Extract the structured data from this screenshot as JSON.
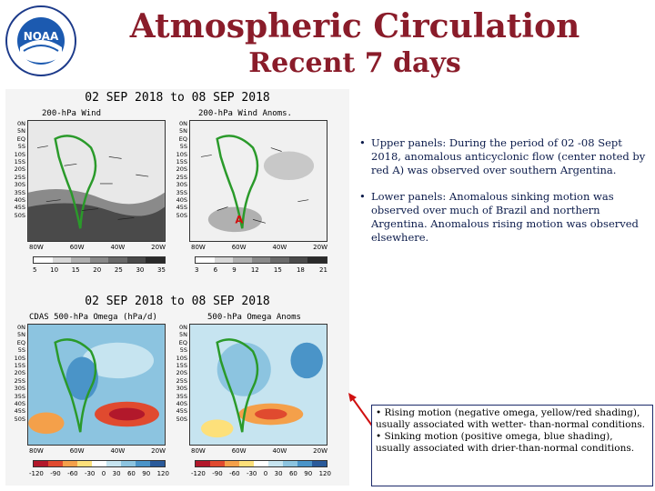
{
  "logo": {
    "text": "NOAA"
  },
  "title": {
    "line1": "Atmospheric Circulation",
    "line2": "Recent 7 days"
  },
  "maps": {
    "top": {
      "period": "02 SEP 2018 to 08 SEP 2018",
      "left_title": "200-hPa Wind",
      "right_title": "200-hPa Wind Anoms.",
      "left_colorbar": [
        "5",
        "10",
        "15",
        "20",
        "25",
        "30",
        "35"
      ],
      "right_colorbar": [
        "3",
        "6",
        "9",
        "12",
        "15",
        "18",
        "21"
      ],
      "colorbar_colors_left": [
        "#ffffff",
        "#d8d8d8",
        "#b0b0b0",
        "#8a8a8a",
        "#6a6a6a",
        "#4a4a4a",
        "#2a2a2a"
      ],
      "colorbar_colors_right": [
        "#ffffff",
        "#d8d8d8",
        "#b0b0b0",
        "#8a8a8a",
        "#6a6a6a",
        "#4a4a4a",
        "#2a2a2a"
      ]
    },
    "bottom": {
      "period": "02 SEP 2018 to 08 SEP 2018",
      "left_title": "CDAS 500-hPa Omega (hPa/d)",
      "right_title": "500-hPa Omega Anoms",
      "left_colorbar": [
        "-120",
        "-90",
        "-60",
        "-30",
        "0",
        "30",
        "60",
        "90",
        "120"
      ],
      "right_colorbar": [
        "-120",
        "-90",
        "-60",
        "-30",
        "0",
        "30",
        "60",
        "90",
        "120"
      ],
      "colorbar_colors": [
        "#b2182b",
        "#e04a2f",
        "#f4a04a",
        "#fde07a",
        "#ffffff",
        "#c6e4f0",
        "#8cc4e0",
        "#4a94c8",
        "#2a5a9a"
      ]
    },
    "lat_labels": [
      "0N",
      "5N",
      "EQ",
      "5S",
      "10S",
      "15S",
      "20S",
      "25S",
      "30S",
      "35S",
      "40S",
      "45S",
      "50S"
    ],
    "lon_labels": [
      "80W",
      "60W",
      "40W",
      "20W"
    ]
  },
  "bullets": [
    {
      "marker": "•",
      "text": "Upper panels:  During the period of  02 -08 Sept 2018, anomalous anticyclonic flow (center noted by red A) was observed over southern Argentina."
    },
    {
      "marker": "•",
      "text": "Lower panels: Anomalous sinking motion was observed over much of Brazil and northern Argentina.  Anomalous rising motion was observed elsewhere."
    }
  ],
  "note": {
    "line1": "• Rising motion (negative omega, yellow/red shading), usually associated with wetter- than-normal conditions.",
    "line2": "• Sinking motion (positive omega, blue shading), usually associated with drier-than-normal conditions."
  },
  "colors": {
    "title": "#8a1c2a",
    "text": "#0a1a4a",
    "coast": "#2a9a2a"
  }
}
